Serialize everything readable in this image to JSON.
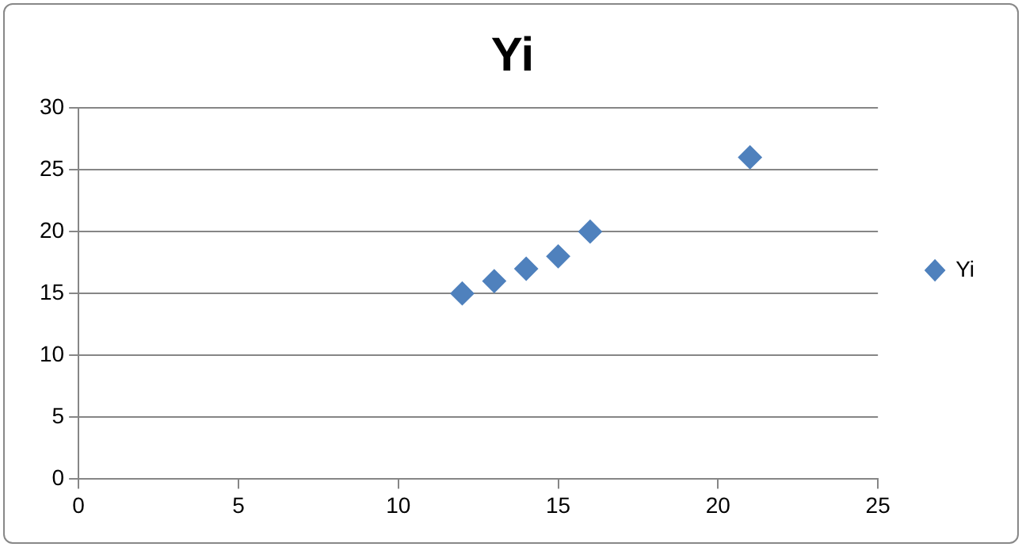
{
  "chart_data": {
    "type": "scatter",
    "title": "Yi",
    "series": [
      {
        "name": "Yi",
        "color": "#4f81bd",
        "x": [
          12,
          13,
          14,
          15,
          16,
          21
        ],
        "values": [
          15,
          16,
          17,
          18,
          20,
          26
        ]
      }
    ],
    "xlim": [
      0,
      25
    ],
    "xticks": [
      0,
      5,
      10,
      15,
      20,
      25
    ],
    "ylim": [
      0,
      30
    ],
    "yticks": [
      0,
      5,
      10,
      15,
      20,
      25,
      30
    ],
    "grid": "y",
    "legend": "right",
    "marker": "diamond"
  }
}
